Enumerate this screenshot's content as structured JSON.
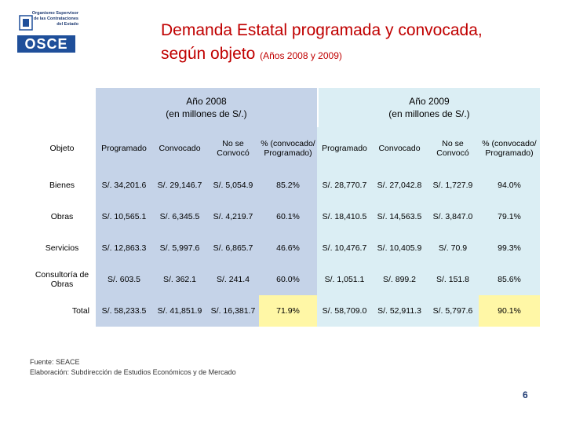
{
  "logo": {
    "org_text": "Organismo Supervisor de las Contrataciones del Estado",
    "word": "OSCE"
  },
  "title": {
    "main": "Demanda Estatal programada y convocada,",
    "line2": "según objeto",
    "sub": "(Años 2008 y 2009)"
  },
  "headers": {
    "y2008": [
      "Año 2008",
      "(en millones de S/.)"
    ],
    "y2009": [
      "Año 2009",
      "(en millones de S/.)"
    ],
    "objeto": "Objeto",
    "columns": [
      "Programado",
      "Convocado",
      "No se Convocó",
      "% (convocado/ Programado)"
    ]
  },
  "rows": [
    {
      "objeto": "Bienes",
      "p2008": "S/. 34,201.6",
      "c2008": "S/. 29,146.7",
      "n2008": "S/. 5,054.9",
      "pct2008": "85.2%",
      "p2009": "S/. 28,770.7",
      "c2009": "S/. 27,042.8",
      "n2009": "S/. 1,727.9",
      "pct2009": "94.0%"
    },
    {
      "objeto": "Obras",
      "p2008": "S/. 10,565.1",
      "c2008": "S/. 6,345.5",
      "n2008": "S/. 4,219.7",
      "pct2008": "60.1%",
      "p2009": "S/. 18,410.5",
      "c2009": "S/. 14,563.5",
      "n2009": "S/. 3,847.0",
      "pct2009": "79.1%"
    },
    {
      "objeto": "Servicios",
      "p2008": "S/. 12,863.3",
      "c2008": "S/. 5,997.6",
      "n2008": "S/. 6,865.7",
      "pct2008": "46.6%",
      "p2009": "S/. 10,476.7",
      "c2009": "S/. 10,405.9",
      "n2009": "S/. 70.9",
      "pct2009": "99.3%"
    },
    {
      "objeto": "Consultoría de Obras",
      "p2008": "S/. 603.5",
      "c2008": "S/. 362.1",
      "n2008": "S/. 241.4",
      "pct2008": "60.0%",
      "p2009": "S/. 1,051.1",
      "c2009": "S/. 899.2",
      "n2009": "S/. 151.8",
      "pct2009": "85.6%"
    }
  ],
  "total": {
    "objeto": "Total",
    "p2008": "S/. 58,233.5",
    "c2008": "S/. 41,851.9",
    "n2008": "S/. 16,381.7",
    "pct2008": "71.9%",
    "p2009": "S/. 58,709.0",
    "c2009": "S/. 52,911.3",
    "n2009": "S/. 5,797.6",
    "pct2009": "90.1%"
  },
  "source": {
    "fuente": "Fuente: SEACE",
    "elaboracion": "Elaboración: Subdirección de Estudios Económicos y de Mercado"
  },
  "page_number": "6",
  "colors": {
    "title": "#c00000",
    "header_2008": "#c5d3e8",
    "header_2009": "#dbeef4",
    "total_highlight": "#fff7a6"
  }
}
